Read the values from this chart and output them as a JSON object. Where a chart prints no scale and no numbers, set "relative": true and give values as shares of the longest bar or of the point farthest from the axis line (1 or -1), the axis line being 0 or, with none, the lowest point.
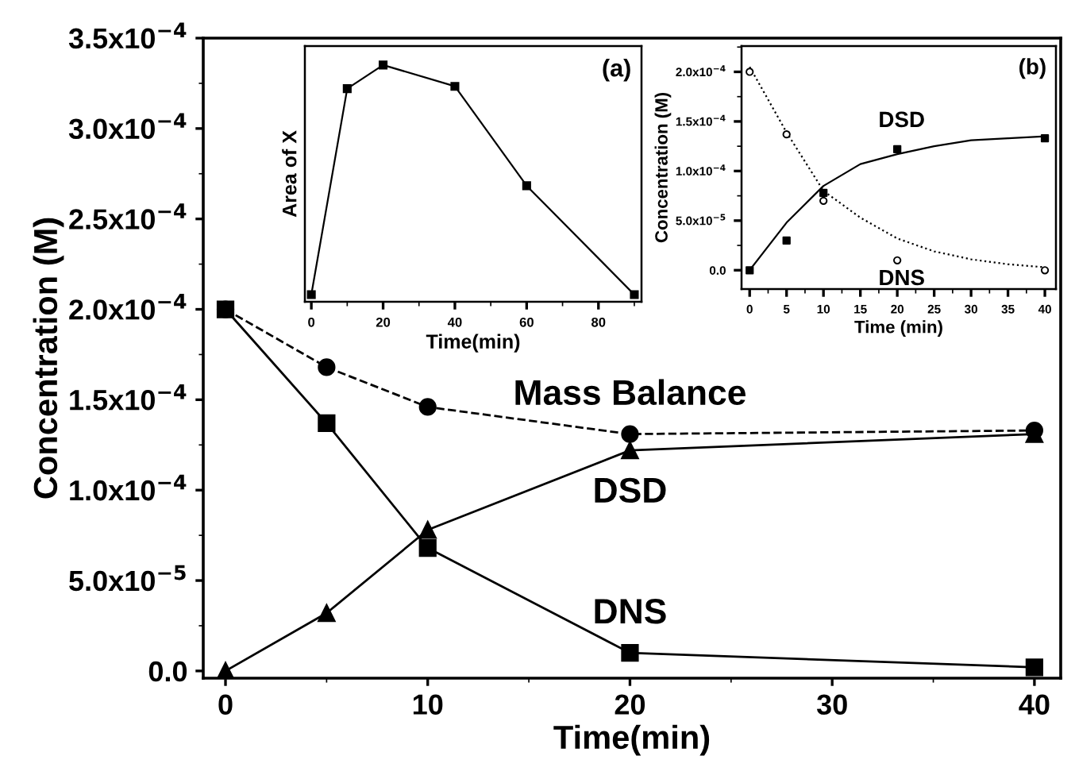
{
  "chart_data": [
    {
      "type": "line",
      "xlabel": "Time(min)",
      "ylabel": "Concentration (M)",
      "xlim": [
        -1.1,
        41.3
      ],
      "ylim": [
        -4e-06,
        0.00035
      ],
      "xticks": [
        0,
        10,
        20,
        30,
        40
      ],
      "yticks": [
        {
          "value": 0,
          "label": "0.0"
        },
        {
          "value": 5e-05,
          "label": "5.0x10$^{−5}$"
        },
        {
          "value": 0.0001,
          "label": "1.0x10$^{−4}$"
        },
        {
          "value": 0.00015,
          "label": "1.5x10$^{−4}$"
        },
        {
          "value": 0.0002,
          "label": "2.0x10$^{−4}$"
        },
        {
          "value": 0.00025,
          "label": "2.5x10$^{−4}$"
        },
        {
          "value": 0.0003,
          "label": "3.0x10$^{−4}$"
        },
        {
          "value": 0.00035,
          "label": "3.5x10$^{−4}$"
        }
      ],
      "x": [
        0,
        5,
        10,
        20,
        40
      ],
      "grid": false,
      "legend": false,
      "series": [
        {
          "name": "Mass Balance",
          "color": "#000000",
          "marker": "circle",
          "line_style": "dashed",
          "values": [
            0.0002,
            0.000168,
            0.000146,
            0.000131,
            0.000133
          ]
        },
        {
          "name": "DSD",
          "color": "#000000",
          "marker": "triangle",
          "line_style": "solid",
          "values": [
            0.0,
            3.2e-05,
            7.8e-05,
            0.000122,
            0.000131
          ]
        },
        {
          "name": "DNS",
          "color": "#000000",
          "marker": "square",
          "line_style": "solid",
          "values": [
            0.0002,
            0.000137,
            6.8e-05,
            1e-05,
            2e-06
          ]
        }
      ]
    },
    {
      "type": "line",
      "title": "(a)",
      "xlabel": "Time(min)",
      "ylabel": "Area of X",
      "relative": true,
      "xlim": [
        -1.8,
        92
      ],
      "xticks": [
        0,
        20,
        40,
        60,
        80
      ],
      "x": [
        0,
        10,
        20,
        40,
        60,
        90
      ],
      "grid": false,
      "legend": false,
      "tick_labels": "x",
      "series": [
        {
          "color": "#000000",
          "marker": "square",
          "line_style": "solid",
          "values": [
            0.03,
            0.9,
            1.0,
            0.91,
            0.49,
            0.03
          ]
        }
      ]
    },
    {
      "type": "scatter",
      "title": "(b)",
      "xlabel": "Time (min)",
      "ylabel": "Concentration (M)",
      "xlim": [
        -1.1,
        41.5
      ],
      "ylim": [
        -1.9e-05,
        0.000226
      ],
      "xticks": [
        0,
        5,
        10,
        15,
        20,
        25,
        30,
        35,
        40
      ],
      "yticks": [
        {
          "value": 0,
          "label": "0.0"
        },
        {
          "value": 5e-05,
          "label": "5.0x10$^{−5}$"
        },
        {
          "value": 0.0001,
          "label": "1.0x10$^{−4}$"
        },
        {
          "value": 0.00015,
          "label": "1.5x10$^{−4}$"
        },
        {
          "value": 0.0002,
          "label": "2.0x10$^{−4}$"
        }
      ],
      "x": [
        0,
        5,
        10,
        20,
        40
      ],
      "grid": false,
      "legend": false,
      "series": [
        {
          "name": "DSD",
          "color": "#000000",
          "marker": "square",
          "values": [
            0.0,
            3e-05,
            7.8e-05,
            0.000122,
            0.000133
          ]
        },
        {
          "name": "DNS",
          "color": "#000000",
          "marker": "circle",
          "values": [
            0.0002,
            0.000137,
            7e-05,
            1e-05,
            0.0
          ]
        },
        {
          "type": "line",
          "color": "#000000",
          "marker": "none",
          "line_style": "solid",
          "x": [
            0,
            5,
            10,
            15,
            20,
            25,
            30,
            35,
            40
          ],
          "values": [
            0.0,
            4.8e-05,
            8.5e-05,
            0.000107,
            0.000117,
            0.000125,
            0.000131,
            0.000133,
            0.000135
          ]
        },
        {
          "type": "line",
          "color": "#000000",
          "marker": "none",
          "line_style": "dotted",
          "x": [
            0,
            5,
            10,
            15,
            20,
            25,
            30,
            35,
            40
          ],
          "values": [
            0.000205,
            0.000139,
            8e-05,
            5.3e-05,
            3.2e-05,
            1.9e-05,
            1.1e-05,
            6e-06,
            3e-06
          ]
        }
      ]
    }
  ]
}
